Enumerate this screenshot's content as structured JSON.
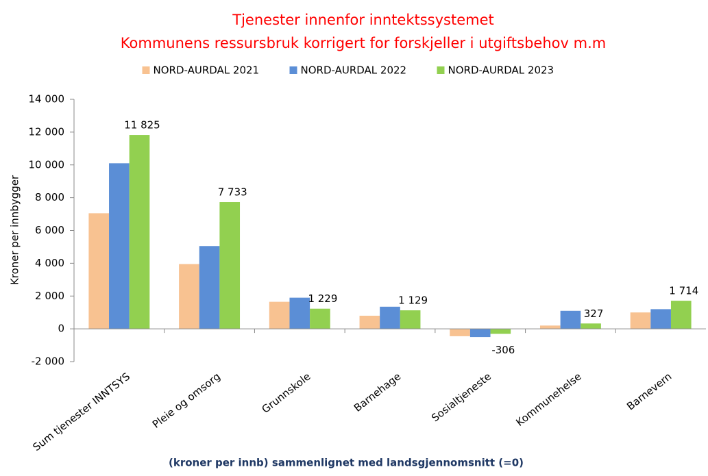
{
  "chart_data": {
    "type": "bar",
    "title": "Tjenester innenfor inntektssystemet",
    "subtitle": "Kommunens ressursbruk korrigert for  forskjeller i utgiftsbehov m.m",
    "y_label": "Kroner per innbygger",
    "x_label": "(kroner per innb) sammenlignet med landsgjennomsnitt (=0)",
    "categories": [
      "Sum tjenester INNTSYS",
      "Pleie og omsorg",
      "Grunnskole",
      "Barnehage",
      "Sosialtjeneste",
      "Kommunehelse",
      "Barnevern"
    ],
    "series": [
      {
        "name": "NORD-AURDAL 2021",
        "color": "#f8c291",
        "values": [
          7050,
          3950,
          1650,
          800,
          -450,
          200,
          1000
        ]
      },
      {
        "name": "NORD-AURDAL 2022",
        "color": "#5b8ed6",
        "values": [
          10100,
          5050,
          1900,
          1350,
          -500,
          1100,
          1200
        ]
      },
      {
        "name": "NORD-AURDAL 2023",
        "color": "#92d050",
        "values": [
          11825,
          7733,
          1229,
          1129,
          -306,
          327,
          1714
        ],
        "value_labels": [
          "11 825",
          "7 733",
          "1 229",
          "1 129",
          "-306",
          "327",
          "1 714"
        ]
      }
    ],
    "ylim": [
      -2000,
      14000
    ],
    "yticks": [
      {
        "value": -2000,
        "label": "-2 000"
      },
      0,
      {
        "value": 2000,
        "label": "2 000"
      },
      {
        "value": 4000,
        "label": "4 000"
      },
      {
        "value": 6000,
        "label": "6 000"
      },
      {
        "value": 8000,
        "label": "8 000"
      },
      {
        "value": 10000,
        "label": "10 000"
      },
      {
        "value": 12000,
        "label": "12 000"
      },
      {
        "value": 14000,
        "label": "14 000"
      }
    ],
    "grid": false,
    "legend": "top"
  }
}
